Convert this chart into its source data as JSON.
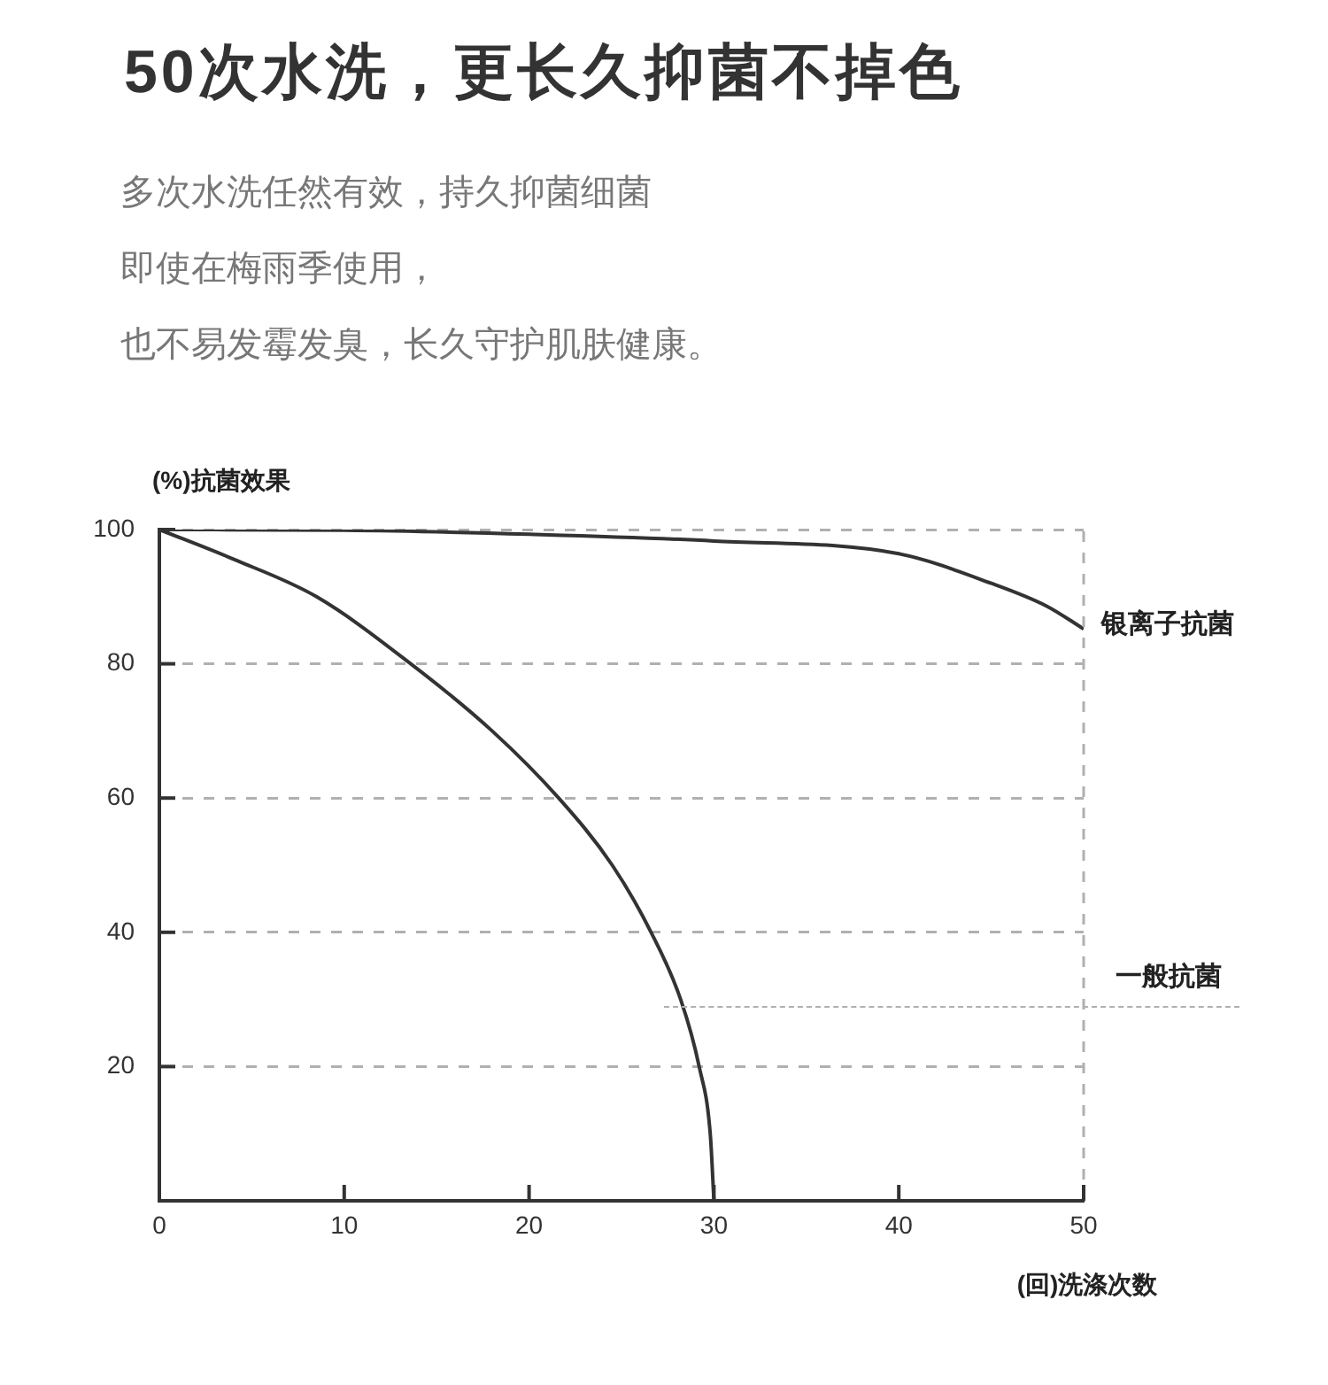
{
  "chart_data": {
    "type": "line",
    "title": "50次水洗，更长久抑菌不掉色",
    "subtitle": "多次水洗任然有效，持久抑菌细菌",
    "annotations": [
      "即使在梅雨季使用，",
      "也不易发霉发臭，长久守护肌肤健康。"
    ],
    "xlabel": "(回)洗涤次数",
    "ylabel": "(%)抗菌效果",
    "series": [
      {
        "name": "银离子抗菌",
        "color": "#333333",
        "x": [
          0,
          10,
          20,
          30,
          40,
          45,
          48,
          50
        ],
        "values": [
          100,
          99.9,
          99.3,
          98.3,
          96.4,
          92,
          88.6,
          85.2
        ]
      },
      {
        "name": "一般抗菌",
        "color": "#333333",
        "x": [
          0,
          4,
          8.5,
          13.6,
          18,
          21.6,
          24.5,
          26.6,
          28.2,
          29.2,
          29.8,
          30
        ],
        "values": [
          100,
          95.6,
          90,
          80,
          70,
          60,
          50,
          40,
          30,
          20,
          10,
          0
        ]
      }
    ],
    "xlim": [
      0,
      50
    ],
    "xticks": [
      0,
      10,
      20,
      30,
      40,
      50
    ],
    "ylim": [
      0,
      100
    ],
    "yticks": [
      20,
      40,
      60,
      80,
      100
    ],
    "grid": "y",
    "legend": false,
    "marker": "none"
  }
}
